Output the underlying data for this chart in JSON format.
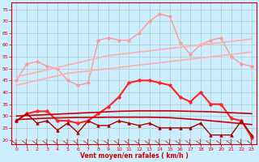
{
  "x": [
    0,
    1,
    2,
    3,
    4,
    5,
    6,
    7,
    8,
    9,
    10,
    11,
    12,
    13,
    14,
    15,
    16,
    17,
    18,
    19,
    20,
    21,
    22,
    23
  ],
  "series": [
    {
      "name": "rafales_zigzag",
      "color": "#FF9999",
      "linewidth": 1.0,
      "marker": "o",
      "markersize": 2.5,
      "y": [
        45,
        52,
        53,
        51,
        50,
        45,
        43,
        44,
        62,
        63,
        62,
        62,
        65,
        70,
        73,
        72,
        61,
        56,
        60,
        62,
        63,
        55,
        52,
        51
      ]
    },
    {
      "name": "trend_upper_pink",
      "color": "#FFB0B0",
      "linewidth": 1.3,
      "marker": null,
      "markersize": 0,
      "y": [
        46.5,
        47.5,
        48.5,
        49.5,
        50.5,
        51.5,
        52.5,
        53.5,
        54.5,
        55.5,
        56,
        56.5,
        57,
        57.5,
        58,
        58.5,
        59,
        59.5,
        60,
        60.5,
        61,
        61.5,
        62,
        62.5
      ]
    },
    {
      "name": "trend_lower_pink",
      "color": "#FFB0B0",
      "linewidth": 1.3,
      "marker": null,
      "markersize": 0,
      "y": [
        43,
        44,
        45,
        46,
        47,
        48,
        48.5,
        49,
        49.5,
        50,
        50.5,
        51,
        51.5,
        52,
        52.5,
        53,
        53.5,
        54,
        54.5,
        55,
        55.5,
        56,
        56.5,
        57
      ]
    },
    {
      "name": "moyen_zigzag",
      "color": "#FF2222",
      "linewidth": 1.5,
      "marker": "o",
      "markersize": 2.5,
      "y": [
        28,
        31,
        32,
        32,
        28,
        28,
        27,
        28,
        31,
        34,
        38,
        44,
        45,
        45,
        44,
        43,
        38,
        36,
        40,
        35,
        35,
        29,
        28,
        21
      ]
    },
    {
      "name": "trend_upper_red",
      "color": "#CC0000",
      "linewidth": 1.2,
      "marker": null,
      "markersize": 0,
      "y": [
        30,
        30.2,
        30.4,
        30.6,
        30.8,
        31,
        31.2,
        31.4,
        31.6,
        31.8,
        32,
        32.1,
        32.2,
        32.2,
        32.2,
        32.2,
        32.1,
        32.0,
        31.9,
        31.8,
        31.6,
        31.4,
        31.2,
        31.0
      ]
    },
    {
      "name": "trend_lower_red",
      "color": "#CC0000",
      "linewidth": 1.2,
      "marker": null,
      "markersize": 0,
      "y": [
        28.5,
        28.7,
        28.9,
        29.1,
        29.2,
        29.3,
        29.4,
        29.4,
        29.4,
        29.5,
        29.5,
        29.5,
        29.5,
        29.5,
        29.4,
        29.3,
        29.0,
        28.7,
        28.4,
        28.0,
        27.6,
        27.2,
        26.8,
        26.4
      ]
    },
    {
      "name": "min_zigzag",
      "color": "#AA0000",
      "linewidth": 1.0,
      "marker": "^",
      "markersize": 2.5,
      "y": [
        28,
        31,
        27,
        28,
        24,
        27,
        23,
        28,
        26,
        26,
        28,
        27,
        26,
        27,
        25,
        25,
        25,
        25,
        27,
        22,
        22,
        22,
        28,
        22
      ]
    }
  ],
  "xlim": [
    -0.5,
    23.5
  ],
  "ylim": [
    18,
    78
  ],
  "yticks": [
    20,
    25,
    30,
    35,
    40,
    45,
    50,
    55,
    60,
    65,
    70,
    75
  ],
  "xticks": [
    0,
    1,
    2,
    3,
    4,
    5,
    6,
    7,
    8,
    9,
    10,
    11,
    12,
    13,
    14,
    15,
    16,
    17,
    18,
    19,
    20,
    21,
    22,
    23
  ],
  "xlabel": "Vent moyen/en rafales ( km/h )",
  "bg_color": "#CCEEFF",
  "grid_color": "#AACCCC",
  "spine_color": "#CC0000",
  "xlabel_color": "#CC0000",
  "tick_color": "#CC0000"
}
